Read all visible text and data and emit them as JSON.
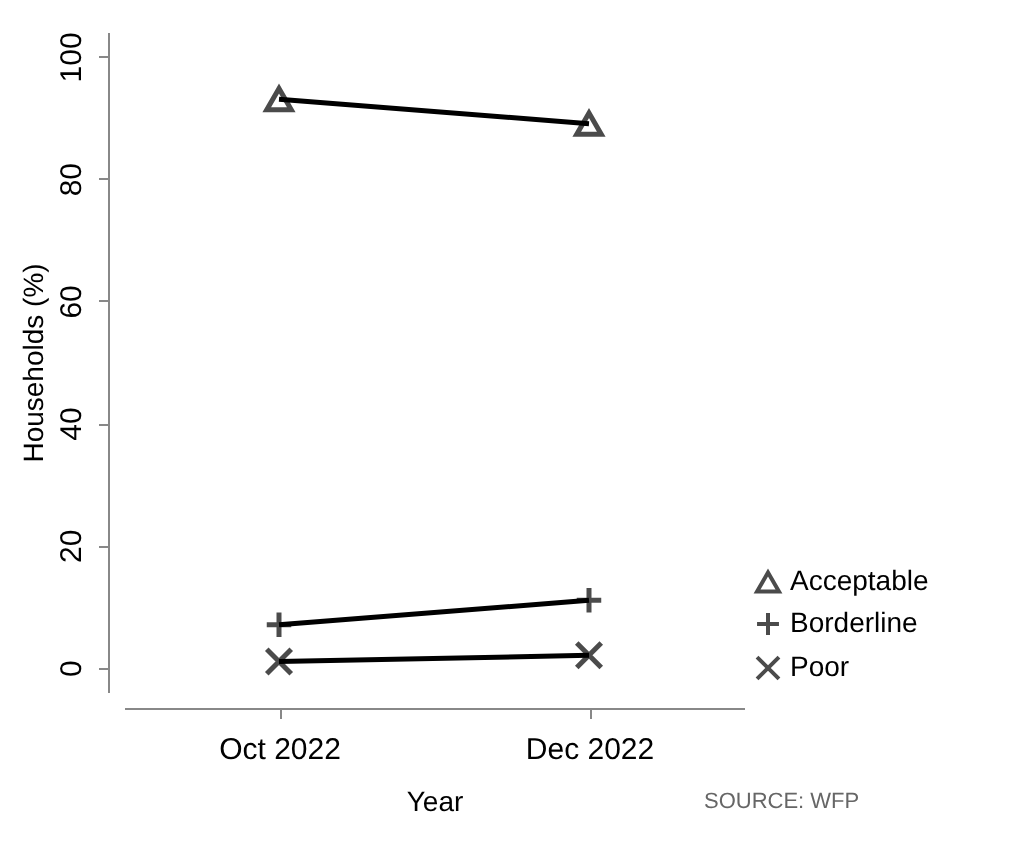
{
  "chart_data": {
    "type": "line",
    "xlabel": "Year",
    "ylabel": "Households (%)",
    "categories": [
      "Oct 2022",
      "Dec 2022"
    ],
    "series": [
      {
        "name": "Acceptable",
        "color": "#000000",
        "marker": "triangle",
        "values": [
          93,
          89
        ]
      },
      {
        "name": "Borderline",
        "color": "#000000",
        "marker": "cross",
        "values": [
          7,
          11
        ]
      },
      {
        "name": "Poor",
        "color": "#000000",
        "marker": "x",
        "values": [
          1,
          2
        ]
      }
    ],
    "ylim": [
      -4,
      104
    ],
    "yticks": [
      0,
      20,
      40,
      60,
      80,
      100
    ],
    "grid": false,
    "legend": "bottom right",
    "line_style": "solid",
    "annotations": [
      "SOURCE: WFP"
    ]
  }
}
